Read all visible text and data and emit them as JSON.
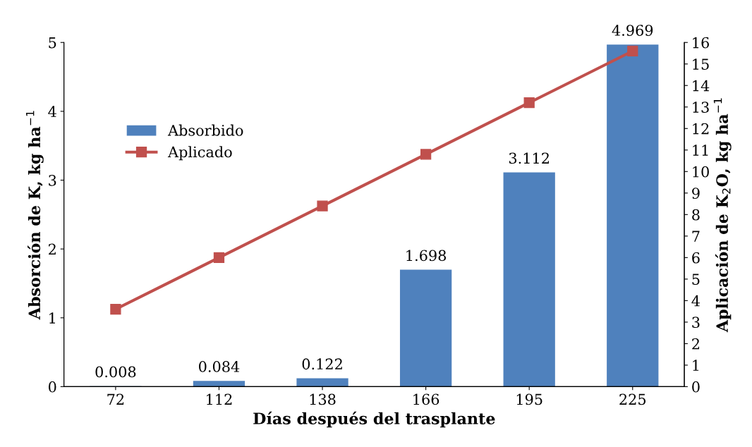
{
  "chart_data": {
    "type": "bar",
    "xlabel": "Días después del trasplante",
    "ylabel": "Absorción de K, kg ha$^{−1}$",
    "y2label": "Aplicación de K$_{2}$O, kg ha$^{−1}$",
    "categories": [
      "72",
      "112",
      "138",
      "166",
      "195",
      "225"
    ],
    "series": [
      {
        "name": "Absorbido",
        "color": "#4f81bd",
        "values": [
          0.008,
          0.084,
          0.122,
          1.698,
          3.112,
          4.969
        ],
        "data_labels": true
      },
      {
        "name": "Aplicado",
        "type": "line",
        "axis": "y2",
        "color": "#c0504d",
        "marker": "square",
        "values": [
          3.6,
          6.0,
          8.4,
          10.8,
          13.2,
          15.6
        ]
      }
    ],
    "ylim": [
      0,
      5
    ],
    "yticks": [
      0,
      1,
      2,
      3,
      4,
      5
    ],
    "y2lim": [
      0,
      16
    ],
    "y2ticks": [
      0,
      1,
      2,
      3,
      4,
      5,
      6,
      7,
      8,
      9,
      10,
      11,
      12,
      13,
      14,
      15,
      16
    ],
    "grid": false,
    "legend": "top left"
  }
}
